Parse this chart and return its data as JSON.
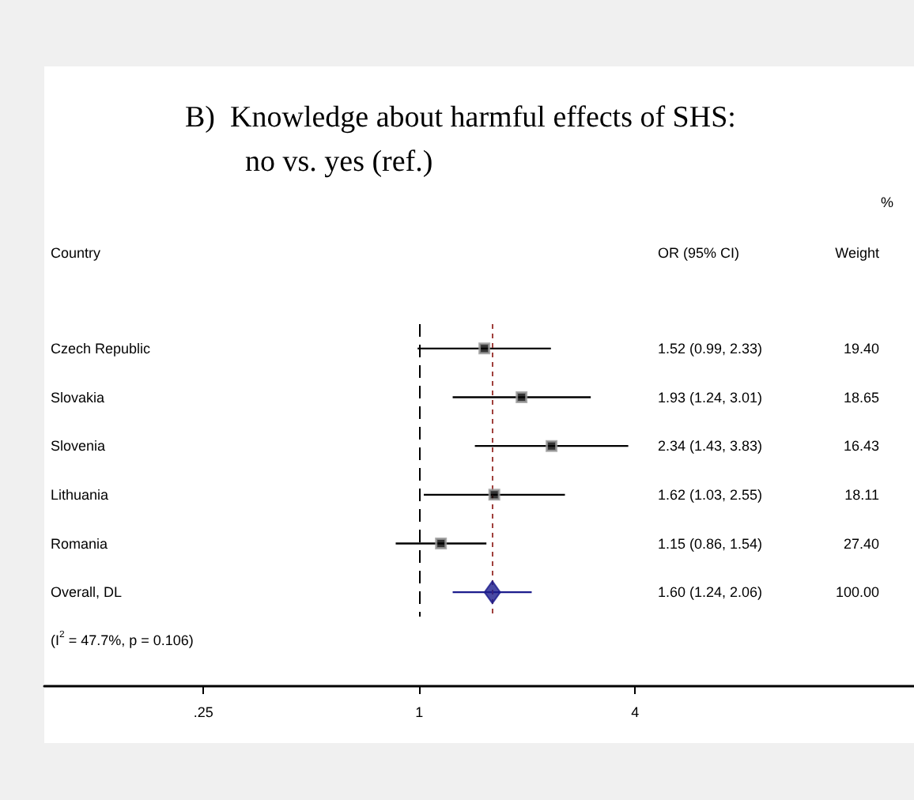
{
  "chart_data": {
    "type": "scatter",
    "orientation": "horizontal",
    "title": "B)  Knowledge about harmful effects of SHS:",
    "subtitle": "no vs. yes (ref.)",
    "ylabel": "Country",
    "categories": [
      "Czech Republic",
      "Slovakia",
      "Slovenia",
      "Lithuania",
      "Romania",
      "Overall, DL"
    ],
    "series": [
      {
        "color": "#000000",
        "marker": "square",
        "values": [
          1.52,
          1.93,
          2.34,
          1.62,
          1.15,
          null
        ],
        "errors": [
          [
            0.99,
            2.33
          ],
          [
            1.24,
            3.01
          ],
          [
            1.43,
            3.83
          ],
          [
            1.03,
            2.55
          ],
          [
            0.86,
            1.54
          ],
          null
        ]
      },
      {
        "color": "#1c1c8c",
        "marker": "diamond",
        "values": [
          null,
          null,
          null,
          null,
          null,
          1.6
        ],
        "errors": [
          null,
          null,
          null,
          null,
          null,
          [
            1.24,
            2.06
          ]
        ]
      }
    ],
    "value_labels": [
      "1.52 (0.99, 2.33)",
      "1.93 (1.24, 3.01)",
      "2.34 (1.43, 3.83)",
      "1.62 (1.03, 2.55)",
      "1.15 (0.86, 1.54)",
      "1.60 (1.24, 2.06)"
    ],
    "annotations": [
      "OR (95% CI)",
      "%",
      "Weight",
      "(I$^{2}$ = 47.7%, p = 0.106)",
      "19.40",
      "18.65",
      "16.43",
      "18.11",
      "27.40",
      "100.00"
    ],
    "log": "x",
    "ref_lines": [
      {
        "axis": "x",
        "value": 1,
        "line_style": "dashed",
        "color": "#000000"
      },
      {
        "axis": "x",
        "value": 1.6,
        "line_style": "dotted",
        "color": "#a0403c"
      }
    ],
    "xlim": [
      0.09,
      24
    ],
    "xticks": [
      {
        "value": 0.25,
        "label": ".25"
      },
      1,
      4
    ]
  }
}
